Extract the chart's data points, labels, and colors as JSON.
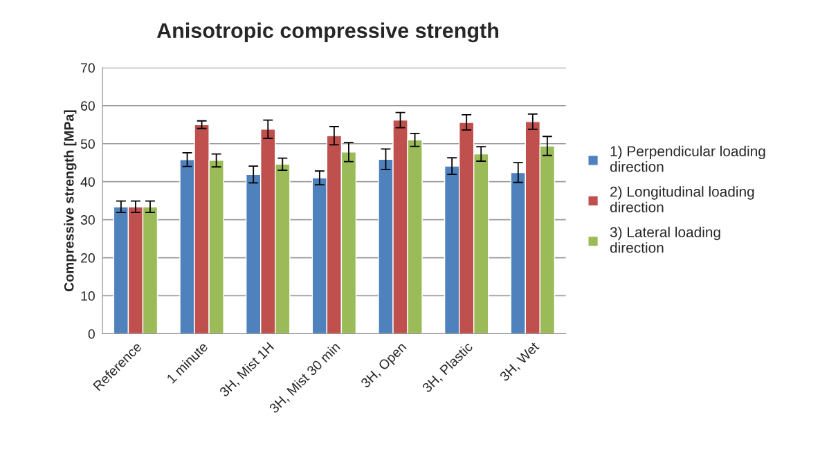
{
  "chart_data": {
    "type": "bar",
    "title": "Anisotropic compressive strength",
    "ylabel": "Compressive strength [MPa]",
    "categories": [
      "Reference",
      "1 minute",
      "3H, Mist 1H",
      "3H, Mist 30 min",
      "3H, Open",
      "3H, Plastic",
      "3H, Wet"
    ],
    "series": [
      {
        "name": "1) Perpendicular loading direction",
        "color": "#4f81bd",
        "values": [
          33.4,
          45.8,
          41.9,
          41.0,
          45.9,
          44.1,
          42.4
        ],
        "errors": [
          1.5,
          1.8,
          2.2,
          1.8,
          2.7,
          2.2,
          2.6
        ]
      },
      {
        "name": "2) Longitudinal loading direction",
        "color": "#c0504d",
        "values": [
          33.4,
          55.0,
          53.8,
          52.1,
          56.2,
          55.6,
          55.8
        ],
        "errors": [
          1.5,
          1.0,
          2.4,
          2.4,
          2.0,
          2.0,
          2.0
        ]
      },
      {
        "name": "3) Lateral loading direction",
        "color": "#9bbb59",
        "values": [
          33.4,
          45.6,
          44.6,
          47.8,
          51.0,
          47.3,
          49.4
        ],
        "errors": [
          1.5,
          1.7,
          1.6,
          2.5,
          1.7,
          1.9,
          2.5
        ]
      }
    ],
    "ylim": [
      0,
      70
    ],
    "yticks": [
      0,
      10,
      20,
      30,
      40,
      50,
      60,
      70
    ],
    "grid": "y",
    "legend": "right"
  }
}
